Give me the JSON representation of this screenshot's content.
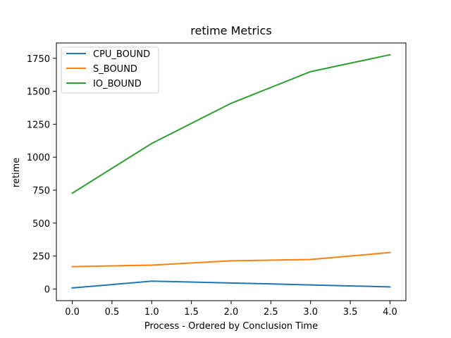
{
  "chart_data": {
    "type": "line",
    "title": "retime Metrics",
    "xlabel": "Process - Ordered by Conclusion Time",
    "ylabel": "retime",
    "x": [
      0,
      1,
      2,
      3,
      4
    ],
    "xlim": [
      -0.2,
      4.2
    ],
    "ylim": [
      -88.5,
      1866.5
    ],
    "xticks": [
      "0.0",
      "0.5",
      "1.0",
      "1.5",
      "2.0",
      "2.5",
      "3.0",
      "3.5",
      "4.0"
    ],
    "yticks": [
      "0",
      "250",
      "500",
      "750",
      "1000",
      "1250",
      "1500",
      "1750"
    ],
    "grid": false,
    "legend_position": "upper left",
    "series": [
      {
        "name": "CPU_BOUND",
        "color": "#1f77b4",
        "values": [
          8,
          60,
          46,
          31,
          16
        ]
      },
      {
        "name": "S_BOUND",
        "color": "#ff7f0e",
        "values": [
          170,
          181,
          214,
          224,
          277
        ]
      },
      {
        "name": "IO_BOUND",
        "color": "#2ca02c",
        "values": [
          727,
          1104,
          1409,
          1649,
          1777
        ]
      }
    ]
  }
}
